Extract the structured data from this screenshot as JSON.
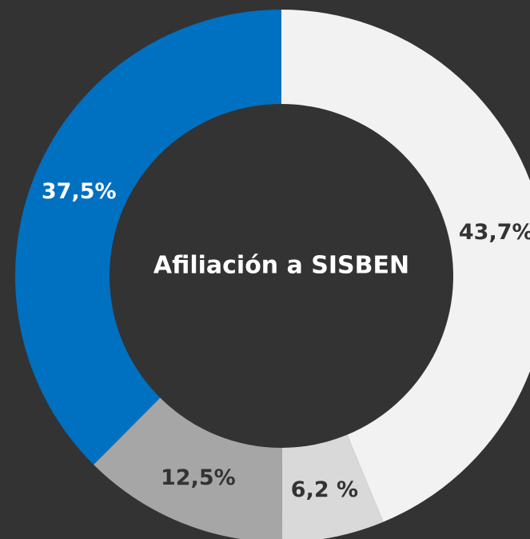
{
  "chart_data": {
    "type": "donut",
    "title": "Afiliación a SISBEN",
    "categories": [
      null,
      null,
      null,
      null
    ],
    "values": [
      43.7,
      6.2,
      12.5,
      37.5
    ],
    "value_labels": [
      "43,7%",
      "6,2 %",
      "12,5%",
      "37,5%"
    ],
    "colors": [
      "#f2f2f2",
      "#d9d9d9",
      "#a6a6a6",
      "#0070c0"
    ],
    "label_colors": [
      "#333333",
      "#333333",
      "#333333",
      "#ffffff"
    ]
  }
}
